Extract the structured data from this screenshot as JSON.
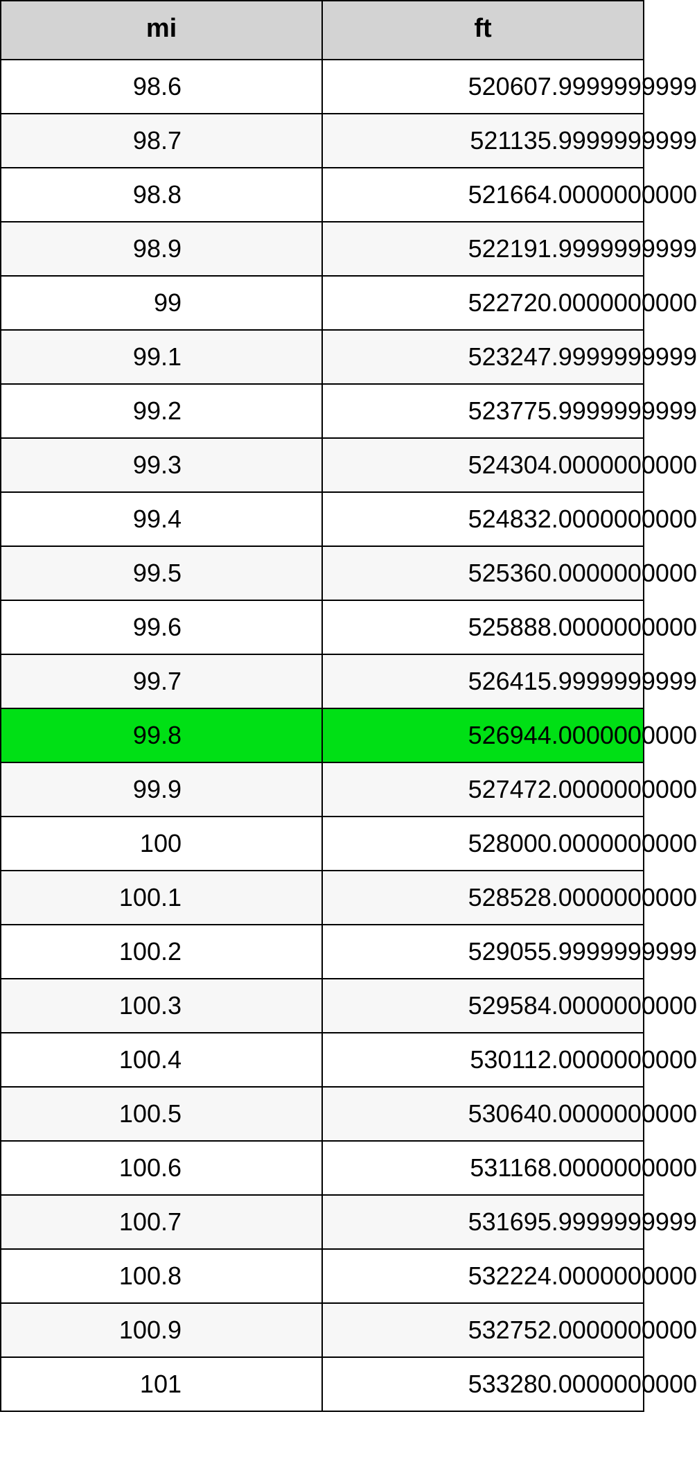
{
  "table": {
    "columns": [
      "mi",
      "ft"
    ],
    "header_bg": "#d3d3d3",
    "border_color": "#000000",
    "row_alt_bg": "#f7f7f7",
    "row_bg": "#ffffff",
    "highlight_bg": "#00e015",
    "text_color": "#000000",
    "header_fontsize": 38,
    "cell_fontsize": 36,
    "highlight_index": 12,
    "rows": [
      {
        "mi": "98.6",
        "ft": "520607.9999999999"
      },
      {
        "mi": "98.7",
        "ft": "521135.9999999999"
      },
      {
        "mi": "98.8",
        "ft": "521664.0000000000"
      },
      {
        "mi": "98.9",
        "ft": "522191.9999999999"
      },
      {
        "mi": "99",
        "ft": "522720.0000000000"
      },
      {
        "mi": "99.1",
        "ft": "523247.9999999999"
      },
      {
        "mi": "99.2",
        "ft": "523775.9999999999"
      },
      {
        "mi": "99.3",
        "ft": "524304.0000000000"
      },
      {
        "mi": "99.4",
        "ft": "524832.0000000000"
      },
      {
        "mi": "99.5",
        "ft": "525360.0000000000"
      },
      {
        "mi": "99.6",
        "ft": "525888.0000000000"
      },
      {
        "mi": "99.7",
        "ft": "526415.9999999999"
      },
      {
        "mi": "99.8",
        "ft": "526944.0000000000"
      },
      {
        "mi": "99.9",
        "ft": "527472.0000000000"
      },
      {
        "mi": "100",
        "ft": "528000.0000000000"
      },
      {
        "mi": "100.1",
        "ft": "528528.0000000000"
      },
      {
        "mi": "100.2",
        "ft": "529055.9999999999"
      },
      {
        "mi": "100.3",
        "ft": "529584.0000000000"
      },
      {
        "mi": "100.4",
        "ft": "530112.0000000000"
      },
      {
        "mi": "100.5",
        "ft": "530640.0000000000"
      },
      {
        "mi": "100.6",
        "ft": "531168.0000000000"
      },
      {
        "mi": "100.7",
        "ft": "531695.9999999999"
      },
      {
        "mi": "100.8",
        "ft": "532224.0000000000"
      },
      {
        "mi": "100.9",
        "ft": "532752.0000000000"
      },
      {
        "mi": "101",
        "ft": "533280.0000000000"
      }
    ]
  }
}
